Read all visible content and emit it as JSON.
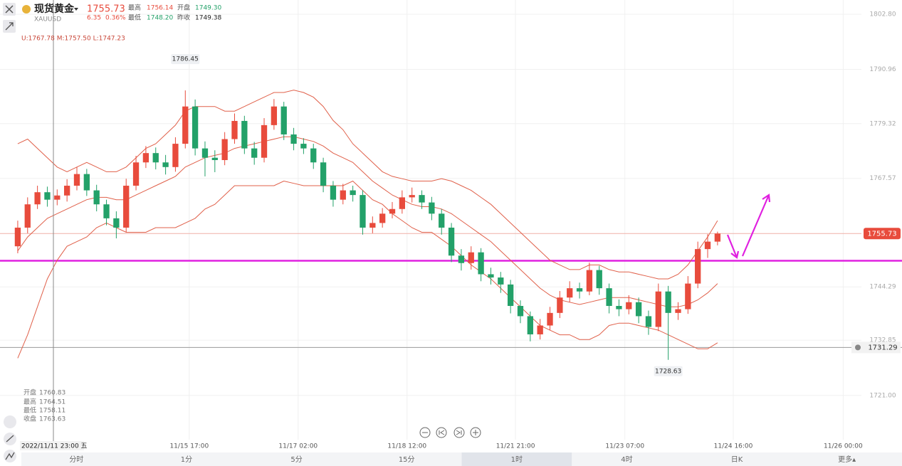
{
  "header": {
    "name": "现货黄金",
    "symbol": "XAUUSD",
    "price": "1755.73",
    "change": "6.35",
    "change_pct": "0.36%",
    "stats": [
      {
        "label": "最高",
        "value": "1756.14"
      },
      {
        "label": "开盘",
        "value": "1749.30"
      },
      {
        "label": "最低",
        "value": "1748.20"
      },
      {
        "label": "昨收",
        "value": "1749.38"
      }
    ]
  },
  "bands_label": "U:1767.78 M:1757.50 L:1747.23",
  "crosshair": {
    "time": "2022/11/11 23:00 五",
    "stats": [
      {
        "label": "开盘",
        "value": "1760.83"
      },
      {
        "label": "最高",
        "value": "1764.51"
      },
      {
        "label": "最低",
        "value": "1758.11"
      },
      {
        "label": "收盘",
        "value": "1763.63"
      }
    ]
  },
  "tabs": {
    "items": [
      "分时",
      "1分",
      "5分",
      "15分",
      "1时",
      "4时",
      "日K",
      "更多▴"
    ],
    "selected": 4
  },
  "chart_data": {
    "type": "candlestick",
    "up_color": "#e84b3c",
    "down_color": "#23a169",
    "open": [
      1753,
      1757,
      1762,
      1764.6,
      1763,
      1763.9,
      1766,
      1768.5,
      1765,
      1762,
      1759,
      1757,
      1766,
      1771,
      1773,
      1771,
      1770,
      1775,
      1783,
      1774,
      1772,
      1771.5,
      1776,
      1779.9,
      1774,
      1772,
      1779,
      1783,
      1777,
      1775,
      1774,
      1771,
      1766,
      1763,
      1765,
      1764,
      1757,
      1758,
      1760,
      1761,
      1763.5,
      1764,
      1762.4,
      1760,
      1757,
      1751,
      1749.4,
      1751.7,
      1747,
      1746.3,
      1744.8,
      1740.2,
      1738,
      1734.1,
      1736,
      1738.7,
      1742,
      1744,
      1743.3,
      1747.9,
      1744,
      1740.2,
      1739.5,
      1741,
      1738,
      1735.7,
      1743.3,
      1738.7,
      1739.5,
      1745,
      1752.4,
      1754
    ],
    "high": [
      1758.5,
      1763.5,
      1766,
      1765.8,
      1765.2,
      1767.4,
      1770,
      1769.6,
      1766.2,
      1763,
      1760.5,
      1767.5,
      1772.4,
      1774.5,
      1774.2,
      1772.6,
      1776.4,
      1786.45,
      1784.5,
      1775.5,
      1773.6,
      1777.5,
      1781.5,
      1781,
      1775.4,
      1780.5,
      1784.6,
      1784,
      1778.4,
      1776.2,
      1775,
      1772,
      1767,
      1766.4,
      1766,
      1765,
      1759.4,
      1761.2,
      1762.5,
      1765,
      1765.6,
      1765,
      1763.6,
      1761,
      1758,
      1752.4,
      1753,
      1752.6,
      1748.4,
      1747.5,
      1745.8,
      1741.4,
      1739,
      1737.4,
      1740,
      1743.4,
      1745.5,
      1745.2,
      1749.5,
      1748.8,
      1745,
      1741.6,
      1742.5,
      1742,
      1739.2,
      1745,
      1744.5,
      1741,
      1746.6,
      1754,
      1755.6,
      1756.14
    ],
    "low": [
      1751.5,
      1755.8,
      1761,
      1761.5,
      1761.8,
      1762.6,
      1765,
      1763.8,
      1760.5,
      1757.5,
      1754.7,
      1756,
      1765,
      1769.8,
      1769.5,
      1768.4,
      1769,
      1774,
      1772.5,
      1768,
      1768.9,
      1770.4,
      1775,
      1772.8,
      1770.5,
      1771,
      1778,
      1775.8,
      1773.6,
      1772.8,
      1769.6,
      1764.6,
      1761.5,
      1762,
      1762.6,
      1755.5,
      1755.8,
      1757,
      1759,
      1760,
      1762.4,
      1761,
      1758.6,
      1755.5,
      1749.6,
      1747.8,
      1748,
      1745.5,
      1744.8,
      1743,
      1738.6,
      1736.5,
      1732.6,
      1733,
      1735,
      1737.6,
      1741,
      1741.8,
      1742.5,
      1742.6,
      1738.6,
      1738,
      1738.4,
      1736.5,
      1734,
      1734.8,
      1728.63,
      1737.2,
      1738.5,
      1744,
      1750.5,
      1753.2
    ],
    "close": [
      1757,
      1762,
      1764.6,
      1763,
      1763.9,
      1766,
      1768.5,
      1765,
      1762,
      1759,
      1757,
      1766,
      1771,
      1773,
      1771,
      1770,
      1775,
      1783,
      1774,
      1772,
      1771.5,
      1776,
      1779.9,
      1774,
      1772,
      1779,
      1783,
      1777,
      1775,
      1774,
      1771,
      1766,
      1763,
      1765,
      1764,
      1757,
      1758,
      1760,
      1761,
      1763.5,
      1764,
      1762.4,
      1760,
      1757,
      1751,
      1749.4,
      1751.7,
      1747,
      1746.3,
      1744.8,
      1740.2,
      1738,
      1734.1,
      1736,
      1738.7,
      1742,
      1744,
      1743.3,
      1747.9,
      1744,
      1740.2,
      1739.5,
      1741,
      1738,
      1735.7,
      1743.3,
      1738.7,
      1739.5,
      1745,
      1752.4,
      1754,
      1755.73
    ],
    "series": [
      {
        "color": "#e0604a",
        "values": [
          1775,
          1776,
          1774,
          1772,
          1770,
          1769,
          1770,
          1771,
          1770,
          1769,
          1769,
          1770,
          1772,
          1774,
          1775,
          1777,
          1779,
          1782,
          1783,
          1783,
          1783,
          1782,
          1782,
          1783,
          1784,
          1785,
          1786,
          1786,
          1786.5,
          1786,
          1785,
          1783,
          1780,
          1778,
          1775,
          1773,
          1771,
          1769,
          1768,
          1767.5,
          1767,
          1767,
          1767,
          1767.5,
          1767,
          1766,
          1765,
          1763.5,
          1762,
          1760,
          1758,
          1756,
          1754,
          1752,
          1750,
          1749,
          1748,
          1748,
          1749,
          1749,
          1748,
          1747.5,
          1747.5,
          1747,
          1746.5,
          1746,
          1746,
          1747,
          1749,
          1752,
          1755,
          1758.5
        ]
      },
      {
        "color": "#e0604a",
        "values": [
          1752,
          1755,
          1757,
          1759,
          1760,
          1761,
          1762,
          1763,
          1763.5,
          1763.5,
          1763,
          1763,
          1764,
          1765,
          1766,
          1767,
          1768,
          1770,
          1771,
          1772,
          1772.5,
          1773,
          1774,
          1774.5,
          1775,
          1775.5,
          1776,
          1776.5,
          1776.5,
          1776,
          1775.5,
          1774.5,
          1773,
          1772,
          1771,
          1769,
          1767,
          1765.5,
          1764,
          1763,
          1762,
          1761.5,
          1761.5,
          1761,
          1760,
          1758.5,
          1757,
          1755.5,
          1754,
          1752,
          1750,
          1748,
          1746,
          1744,
          1742.5,
          1741.5,
          1741,
          1740.5,
          1741,
          1741.5,
          1742,
          1742,
          1742,
          1741.5,
          1741,
          1740.5,
          1740,
          1740,
          1740.5,
          1741.5,
          1743,
          1745
        ]
      },
      {
        "color": "#e0604a",
        "values": [
          1729,
          1734,
          1740,
          1746,
          1750,
          1753,
          1754,
          1755,
          1757,
          1758,
          1757,
          1756,
          1756,
          1756,
          1757,
          1757,
          1757,
          1758,
          1759,
          1761,
          1762,
          1764,
          1766,
          1766,
          1766,
          1766,
          1766,
          1767,
          1766.5,
          1766,
          1766,
          1766,
          1766,
          1766,
          1767,
          1765,
          1763,
          1762,
          1760,
          1758.5,
          1757,
          1756,
          1756,
          1754.5,
          1753,
          1751,
          1749,
          1747.5,
          1746,
          1744,
          1742,
          1740,
          1738,
          1736,
          1735,
          1734,
          1734,
          1733,
          1733,
          1734,
          1736,
          1736.5,
          1736.5,
          1736,
          1735.5,
          1735,
          1734,
          1733,
          1732,
          1731,
          1731,
          1732.3
        ]
      }
    ],
    "hlines": [
      {
        "value": 1749.9,
        "color": "#e020e0"
      },
      {
        "value": 1731.29,
        "color": "#9a9a9a"
      }
    ],
    "price_line_color": "#f0b0a8",
    "ylim": [
      1711.5,
      1805.85
    ],
    "yticks": [
      {
        "value": 1721,
        "label": "1721.00"
      },
      1732.85,
      1744.29,
      1767.57,
      1779.32,
      1790.96,
      {
        "value": 1802.8,
        "label": "1802.80"
      }
    ],
    "xlim": [
      -1.8,
      85.6
    ],
    "xticks": [
      {
        "value": 17.4,
        "label": "11/15 17:00"
      },
      {
        "value": 28.45,
        "label": "11/17 02:00"
      },
      {
        "value": 39.5,
        "label": "11/18 12:00"
      },
      {
        "value": 50.5,
        "label": "11/21 21:00"
      },
      {
        "value": 61.6,
        "label": "11/23 07:00"
      },
      {
        "value": 72.6,
        "label": "11/24 16:00"
      },
      {
        "value": 83.75,
        "label": "11/26 00:00"
      }
    ],
    "grid": true
  }
}
